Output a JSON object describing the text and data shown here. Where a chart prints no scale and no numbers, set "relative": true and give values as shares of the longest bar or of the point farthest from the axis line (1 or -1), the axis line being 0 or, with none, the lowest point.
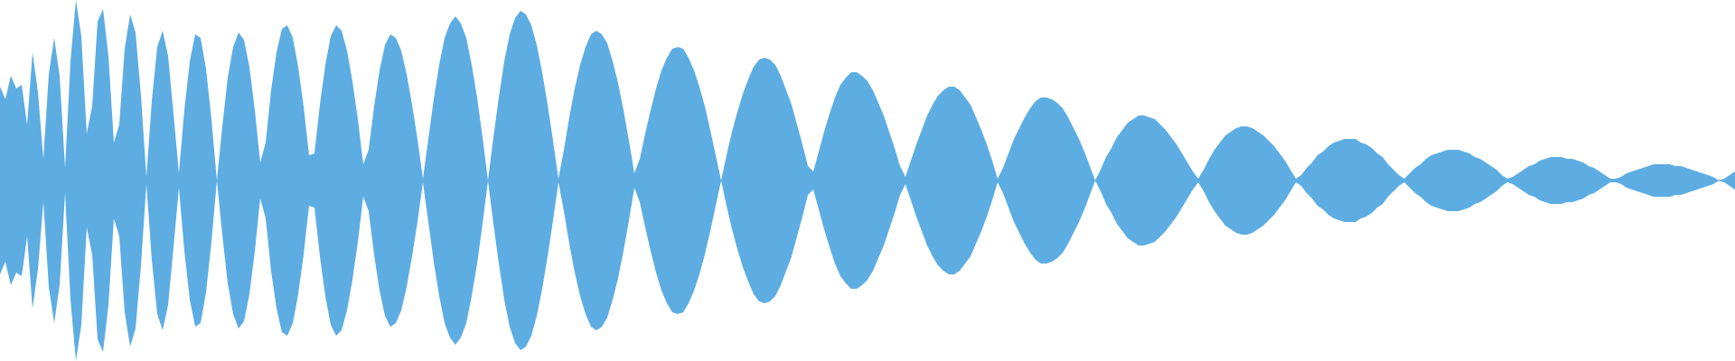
{
  "chart_data": {
    "type": "area",
    "relative": true,
    "categories": [
      null,
      null,
      null,
      null,
      null,
      null,
      null,
      null,
      null,
      null,
      null,
      null,
      null,
      null,
      null,
      null,
      null,
      null,
      null,
      null,
      null,
      null,
      null,
      null,
      null,
      null,
      null,
      null,
      null,
      null,
      null,
      null,
      null,
      null,
      null,
      null,
      null,
      null,
      null,
      null,
      null,
      null,
      null,
      null,
      null,
      null,
      null,
      null,
      null,
      null,
      null,
      null,
      null,
      null,
      null,
      null,
      null,
      null,
      null,
      null,
      null,
      null,
      null,
      null,
      null,
      null,
      null,
      null,
      null,
      null,
      null,
      null,
      null,
      null,
      null,
      null,
      null,
      null,
      null,
      null,
      null,
      null,
      null,
      null,
      null,
      null,
      null,
      null,
      null,
      null,
      null,
      null,
      null,
      null,
      null,
      null,
      null,
      null,
      null,
      null,
      null,
      null,
      null,
      null,
      null,
      null,
      null,
      null,
      null,
      null,
      null,
      null,
      null,
      null,
      null,
      null,
      null,
      null,
      null,
      null,
      null,
      null,
      null,
      null,
      null,
      null,
      null,
      null,
      null,
      null,
      null,
      null,
      null,
      null,
      null,
      null,
      null,
      null,
      null,
      null,
      null,
      null,
      null,
      null,
      null,
      null,
      null,
      null,
      null,
      null,
      null,
      null,
      null,
      null,
      null,
      null,
      null,
      null,
      null,
      null,
      null,
      null,
      null,
      null,
      null,
      null,
      null,
      null,
      null,
      null,
      null,
      null,
      null,
      null,
      null,
      null,
      null,
      null,
      null,
      null,
      null,
      null,
      null,
      null,
      null,
      null,
      null,
      null,
      null,
      null,
      null,
      null,
      null,
      null,
      null,
      null,
      null,
      null,
      null,
      null,
      null,
      null,
      null,
      null,
      null,
      null,
      null,
      null,
      null,
      null,
      null,
      null,
      null,
      null,
      null,
      null,
      null,
      null,
      null,
      null,
      null,
      null,
      null,
      null,
      null,
      null,
      null,
      null,
      null,
      null,
      null,
      null,
      null,
      null,
      null,
      null,
      null,
      null,
      null,
      null,
      null,
      null,
      null,
      null,
      null,
      null,
      null,
      null,
      null,
      null,
      null,
      null,
      null,
      null,
      null,
      null,
      null,
      null,
      null,
      null,
      null,
      null,
      null,
      null,
      null,
      null,
      null,
      null,
      null,
      null,
      null,
      null,
      null,
      null,
      null,
      null,
      null,
      null,
      null,
      null,
      null,
      null,
      null,
      null,
      null,
      null,
      null,
      null,
      null,
      null,
      null,
      null,
      null,
      null,
      null,
      null,
      null,
      null,
      null,
      null,
      null,
      null,
      null,
      null,
      null,
      null,
      null,
      null,
      null,
      null,
      null,
      null,
      null,
      null,
      null,
      null,
      null,
      null,
      null,
      null,
      null
    ],
    "series": [
      {
        "color": "#5dade2",
        "values": [
          0.52,
          0.45,
          0.58,
          0.51,
          0.53,
          0.31,
          0.71,
          0.49,
          0.12,
          0.59,
          0.79,
          0.58,
          0.07,
          0.66,
          1.0,
          0.8,
          0.26,
          0.41,
          0.88,
          0.95,
          0.69,
          0.21,
          0.31,
          0.73,
          0.92,
          0.82,
          0.47,
          0.02,
          0.44,
          0.74,
          0.83,
          0.69,
          0.37,
          0.04,
          0.39,
          0.66,
          0.81,
          0.79,
          0.62,
          0.34,
          0,
          0.3,
          0.57,
          0.74,
          0.82,
          0.78,
          0.63,
          0.39,
          0.1,
          0.21,
          0.5,
          0.71,
          0.84,
          0.86,
          0.79,
          0.63,
          0.41,
          0.14,
          0.15,
          0.42,
          0.64,
          0.8,
          0.86,
          0.83,
          0.72,
          0.55,
          0.34,
          0.09,
          0.17,
          0.41,
          0.61,
          0.75,
          0.81,
          0.79,
          0.72,
          0.59,
          0.42,
          0.23,
          0.01,
          0.23,
          0.45,
          0.64,
          0.79,
          0.87,
          0.91,
          0.87,
          0.79,
          0.64,
          0.46,
          0.24,
          0,
          0.24,
          0.46,
          0.66,
          0.81,
          0.9,
          0.94,
          0.92,
          0.86,
          0.75,
          0.6,
          0.42,
          0.22,
          0.01,
          0.17,
          0.35,
          0.51,
          0.64,
          0.74,
          0.81,
          0.83,
          0.81,
          0.76,
          0.66,
          0.54,
          0.39,
          0.22,
          0.04,
          0.12,
          0.26,
          0.39,
          0.51,
          0.61,
          0.68,
          0.73,
          0.74,
          0.73,
          0.68,
          0.61,
          0.52,
          0.41,
          0.28,
          0.14,
          0,
          0.14,
          0.27,
          0.38,
          0.48,
          0.56,
          0.63,
          0.67,
          0.68,
          0.67,
          0.64,
          0.58,
          0.5,
          0.42,
          0.31,
          0.2,
          0.08,
          0.05,
          0.16,
          0.27,
          0.37,
          0.46,
          0.53,
          0.57,
          0.6,
          0.6,
          0.58,
          0.55,
          0.5,
          0.43,
          0.36,
          0.27,
          0.18,
          0.08,
          0.02,
          0.11,
          0.2,
          0.28,
          0.36,
          0.42,
          0.47,
          0.5,
          0.52,
          0.52,
          0.5,
          0.46,
          0.42,
          0.35,
          0.28,
          0.2,
          0.11,
          0.01,
          0.07,
          0.15,
          0.23,
          0.29,
          0.35,
          0.4,
          0.44,
          0.46,
          0.46,
          0.45,
          0.43,
          0.4,
          0.35,
          0.29,
          0.23,
          0.16,
          0.08,
          0,
          0.06,
          0.13,
          0.18,
          0.24,
          0.28,
          0.32,
          0.34,
          0.36,
          0.36,
          0.35,
          0.34,
          0.31,
          0.28,
          0.24,
          0.2,
          0.15,
          0.1,
          0.05,
          0.01,
          0.06,
          0.12,
          0.17,
          0.21,
          0.25,
          0.27,
          0.29,
          0.3,
          0.3,
          0.29,
          0.27,
          0.25,
          0.22,
          0.19,
          0.15,
          0.11,
          0.06,
          0.01,
          0.03,
          0.07,
          0.1,
          0.14,
          0.16,
          0.19,
          0.21,
          0.22,
          0.23,
          0.23,
          0.23,
          0.21,
          0.2,
          0.18,
          0.15,
          0.13,
          0.09,
          0.06,
          0.03,
          0.01,
          0.04,
          0.07,
          0.09,
          0.12,
          0.14,
          0.15,
          0.16,
          0.17,
          0.17,
          0.17,
          0.16,
          0.15,
          0.13,
          0.12,
          0.1,
          0.08,
          0.06,
          0.03,
          0.01,
          0.02,
          0.04,
          0.06,
          0.08,
          0.09,
          0.11,
          0.12,
          0.13,
          0.13,
          0.13,
          0.12,
          0.12,
          0.11,
          0.1,
          0.08,
          0.07,
          0.05,
          0.03,
          0.01,
          0.01,
          0.02,
          0.04,
          0.05,
          0.06,
          0.07,
          0.08,
          0.09,
          0.09,
          0.09,
          0.09,
          0.08,
          0.08,
          0.07,
          0.06,
          0.05,
          0.04,
          0.03,
          0.02,
          0,
          0.01,
          0.03,
          0.05
        ]
      },
      {
        "color": "#5dade2",
        "values": [
          -0.52,
          -0.45,
          -0.58,
          -0.51,
          -0.53,
          -0.31,
          -0.71,
          -0.49,
          -0.12,
          -0.59,
          -0.79,
          -0.58,
          -0.07,
          -0.66,
          -1.0,
          -0.8,
          -0.26,
          -0.41,
          -0.88,
          -0.95,
          -0.69,
          -0.21,
          -0.31,
          -0.73,
          -0.92,
          -0.82,
          -0.47,
          -0.02,
          -0.44,
          -0.74,
          -0.83,
          -0.69,
          -0.37,
          -0.04,
          -0.39,
          -0.66,
          -0.81,
          -0.79,
          -0.62,
          -0.34,
          0,
          -0.3,
          -0.57,
          -0.74,
          -0.82,
          -0.78,
          -0.63,
          -0.39,
          -0.1,
          -0.21,
          -0.5,
          -0.71,
          -0.84,
          -0.86,
          -0.79,
          -0.63,
          -0.41,
          -0.14,
          -0.15,
          -0.42,
          -0.64,
          -0.8,
          -0.86,
          -0.83,
          -0.72,
          -0.55,
          -0.34,
          -0.09,
          -0.17,
          -0.41,
          -0.61,
          -0.75,
          -0.81,
          -0.79,
          -0.72,
          -0.59,
          -0.42,
          -0.23,
          -0.01,
          -0.23,
          -0.45,
          -0.64,
          -0.79,
          -0.87,
          -0.91,
          -0.87,
          -0.79,
          -0.64,
          -0.46,
          -0.24,
          0,
          -0.24,
          -0.46,
          -0.66,
          -0.81,
          -0.9,
          -0.94,
          -0.92,
          -0.86,
          -0.75,
          -0.6,
          -0.42,
          -0.22,
          -0.01,
          -0.17,
          -0.35,
          -0.51,
          -0.64,
          -0.74,
          -0.81,
          -0.83,
          -0.81,
          -0.76,
          -0.66,
          -0.54,
          -0.39,
          -0.22,
          -0.04,
          -0.12,
          -0.26,
          -0.39,
          -0.51,
          -0.61,
          -0.68,
          -0.73,
          -0.74,
          -0.73,
          -0.68,
          -0.61,
          -0.52,
          -0.41,
          -0.28,
          -0.14,
          0,
          -0.14,
          -0.27,
          -0.38,
          -0.48,
          -0.56,
          -0.63,
          -0.67,
          -0.68,
          -0.67,
          -0.64,
          -0.58,
          -0.5,
          -0.42,
          -0.31,
          -0.2,
          -0.08,
          -0.05,
          -0.16,
          -0.27,
          -0.37,
          -0.46,
          -0.53,
          -0.57,
          -0.6,
          -0.6,
          -0.58,
          -0.55,
          -0.5,
          -0.43,
          -0.36,
          -0.27,
          -0.18,
          -0.08,
          -0.02,
          -0.11,
          -0.2,
          -0.28,
          -0.36,
          -0.42,
          -0.47,
          -0.5,
          -0.52,
          -0.52,
          -0.5,
          -0.46,
          -0.42,
          -0.35,
          -0.28,
          -0.2,
          -0.11,
          -0.01,
          -0.07,
          -0.15,
          -0.23,
          -0.29,
          -0.35,
          -0.4,
          -0.44,
          -0.46,
          -0.46,
          -0.45,
          -0.43,
          -0.4,
          -0.35,
          -0.29,
          -0.23,
          -0.16,
          -0.08,
          0,
          -0.06,
          -0.13,
          -0.18,
          -0.24,
          -0.28,
          -0.32,
          -0.34,
          -0.36,
          -0.36,
          -0.35,
          -0.34,
          -0.31,
          -0.28,
          -0.24,
          -0.2,
          -0.15,
          -0.1,
          -0.05,
          -0.01,
          -0.06,
          -0.12,
          -0.17,
          -0.21,
          -0.25,
          -0.27,
          -0.29,
          -0.3,
          -0.3,
          -0.29,
          -0.27,
          -0.25,
          -0.22,
          -0.19,
          -0.15,
          -0.11,
          -0.06,
          -0.01,
          -0.03,
          -0.07,
          -0.1,
          -0.14,
          -0.16,
          -0.19,
          -0.21,
          -0.22,
          -0.23,
          -0.23,
          -0.23,
          -0.21,
          -0.2,
          -0.18,
          -0.15,
          -0.13,
          -0.09,
          -0.06,
          -0.03,
          -0.01,
          -0.04,
          -0.07,
          -0.09,
          -0.12,
          -0.14,
          -0.15,
          -0.16,
          -0.17,
          -0.17,
          -0.17,
          -0.16,
          -0.15,
          -0.13,
          -0.12,
          -0.1,
          -0.08,
          -0.06,
          -0.03,
          -0.01,
          -0.02,
          -0.04,
          -0.06,
          -0.08,
          -0.09,
          -0.11,
          -0.12,
          -0.13,
          -0.13,
          -0.13,
          -0.12,
          -0.12,
          -0.11,
          -0.1,
          -0.08,
          -0.07,
          -0.05,
          -0.03,
          -0.01,
          -0.01,
          -0.02,
          -0.04,
          -0.05,
          -0.06,
          -0.07,
          -0.08,
          -0.09,
          -0.09,
          -0.09,
          -0.09,
          -0.08,
          -0.08,
          -0.07,
          -0.06,
          -0.05,
          -0.04,
          -0.03,
          -0.02,
          0,
          -0.01,
          -0.03,
          -0.05
        ]
      }
    ]
  }
}
